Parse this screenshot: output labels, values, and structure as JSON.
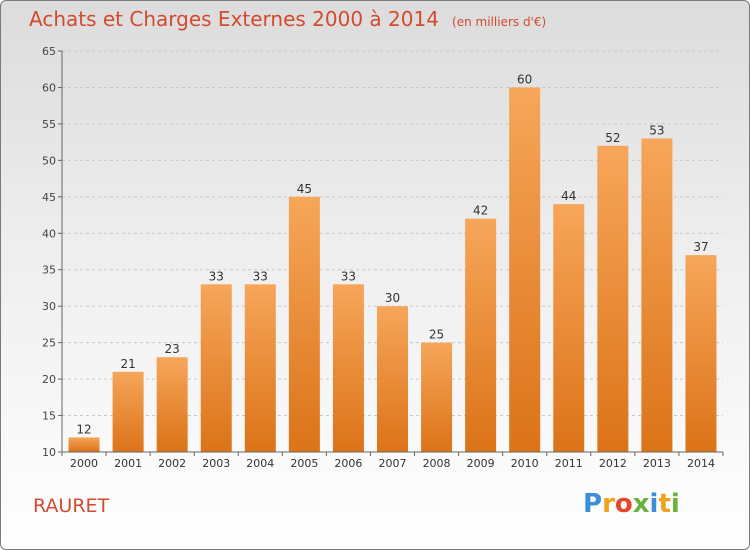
{
  "title": "Achats et Charges Externes 2000 à 2014",
  "subtitle": "(en milliers d'€)",
  "commune": "RAURET",
  "logo": {
    "letters": [
      "P",
      "r",
      "o",
      "x",
      "i",
      "t",
      "i"
    ],
    "colors": [
      "#3b8fd6",
      "#f0a21b",
      "#e8442a",
      "#6cb23c",
      "#3b8fd6",
      "#f0a21b",
      "#6cb23c"
    ]
  },
  "colors": {
    "title": "#d34a2f",
    "bar_top": "#f6a65a",
    "bar_bottom": "#dc7318"
  },
  "chart_data": {
    "type": "bar",
    "categories": [
      "2000",
      "2001",
      "2002",
      "2003",
      "2004",
      "2005",
      "2006",
      "2007",
      "2008",
      "2009",
      "2010",
      "2011",
      "2012",
      "2013",
      "2014"
    ],
    "values": [
      12,
      21,
      23,
      33,
      33,
      45,
      33,
      30,
      25,
      42,
      60,
      44,
      52,
      53,
      37
    ],
    "ylim": [
      10,
      65
    ],
    "yticks": [
      10,
      15,
      20,
      25,
      30,
      35,
      40,
      45,
      50,
      55,
      60,
      65
    ],
    "grid": true,
    "data_labels": true
  }
}
